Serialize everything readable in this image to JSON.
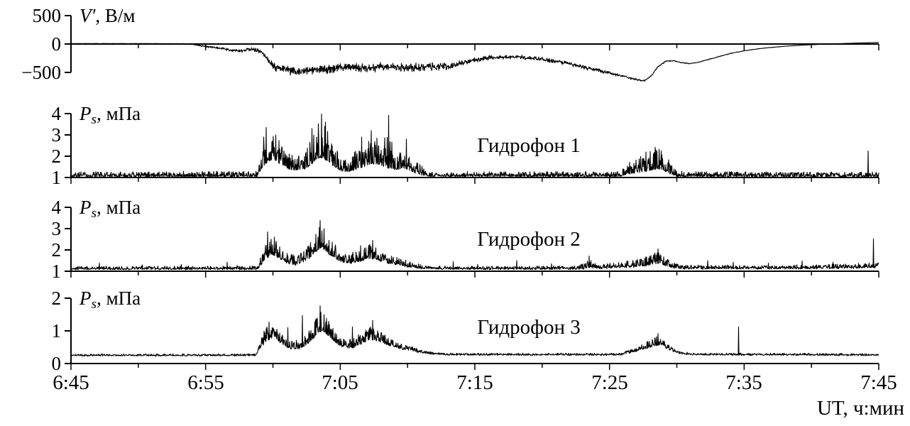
{
  "figure": {
    "background": "#ffffff",
    "stroke": "#000000",
    "xlabel": "UT, ч:мин",
    "x_minor_step_min": 5,
    "x_major": [
      {
        "t": 0,
        "label": "6:45"
      },
      {
        "t": 10,
        "label": "6:55"
      },
      {
        "t": 20,
        "label": "7:05"
      },
      {
        "t": 30,
        "label": "7:15"
      },
      {
        "t": 40,
        "label": "7:25"
      },
      {
        "t": 50,
        "label": "7:35"
      },
      {
        "t": 60,
        "label": "7:45"
      }
    ]
  },
  "chart_data": [
    {
      "id": "em-field",
      "type": "line",
      "label": "",
      "ylabel": "V′, В/м",
      "ylabel_parts": {
        "symbol": "V",
        "prime": "′",
        "sub": "",
        "unit": ", В/м"
      },
      "yticks": [
        500,
        0,
        -500
      ],
      "ytick_labels": [
        "500",
        "0",
        "−500"
      ],
      "ylim": [
        -750,
        550
      ],
      "xlim_minutes": [
        0,
        60
      ],
      "noise_model": "symmetric",
      "jitter": 0,
      "mean": [
        [
          0,
          8
        ],
        [
          6,
          8
        ],
        [
          8,
          4
        ],
        [
          9,
          -5
        ],
        [
          10,
          -45
        ],
        [
          11,
          -70
        ],
        [
          12,
          -110
        ],
        [
          12.7,
          -125
        ],
        [
          13.4,
          -85
        ],
        [
          14.1,
          -130
        ],
        [
          14.7,
          -280
        ],
        [
          15.2,
          -430
        ],
        [
          16,
          -455
        ],
        [
          17,
          -485
        ],
        [
          18,
          -440
        ],
        [
          19,
          -445
        ],
        [
          20,
          -425
        ],
        [
          21,
          -405
        ],
        [
          22,
          -435
        ],
        [
          23,
          -405
        ],
        [
          24,
          -395
        ],
        [
          25,
          -425
        ],
        [
          26,
          -405
        ],
        [
          27,
          -395
        ],
        [
          28,
          -405
        ],
        [
          29,
          -340
        ],
        [
          30,
          -285
        ],
        [
          31,
          -245
        ],
        [
          32,
          -230
        ],
        [
          33,
          -220
        ],
        [
          34,
          -240
        ],
        [
          35,
          -270
        ],
        [
          36,
          -305
        ],
        [
          37,
          -350
        ],
        [
          38,
          -400
        ],
        [
          39,
          -455
        ],
        [
          40,
          -510
        ],
        [
          41,
          -570
        ],
        [
          42,
          -625
        ],
        [
          42.6,
          -645
        ],
        [
          43.1,
          -560
        ],
        [
          43.6,
          -400
        ],
        [
          44.2,
          -300
        ],
        [
          44.8,
          -295
        ],
        [
          45.4,
          -330
        ],
        [
          46,
          -345
        ],
        [
          46.6,
          -320
        ],
        [
          47.4,
          -270
        ],
        [
          48.2,
          -215
        ],
        [
          49,
          -165
        ],
        [
          50,
          -120
        ],
        [
          51,
          -85
        ],
        [
          52,
          -60
        ],
        [
          53,
          -40
        ],
        [
          54,
          -25
        ],
        [
          55,
          -12
        ],
        [
          56,
          -2
        ],
        [
          57,
          6
        ],
        [
          58,
          14
        ],
        [
          59,
          22
        ],
        [
          60,
          28
        ]
      ],
      "amp": [
        [
          0,
          4
        ],
        [
          7,
          5
        ],
        [
          9,
          12
        ],
        [
          11,
          22
        ],
        [
          13,
          35
        ],
        [
          14,
          45
        ],
        [
          15,
          80
        ],
        [
          16,
          95
        ],
        [
          18,
          90
        ],
        [
          20,
          95
        ],
        [
          22,
          90
        ],
        [
          24,
          95
        ],
        [
          26,
          85
        ],
        [
          28,
          75
        ],
        [
          29,
          55
        ],
        [
          31,
          45
        ],
        [
          33,
          40
        ],
        [
          35,
          45
        ],
        [
          37,
          45
        ],
        [
          39,
          40
        ],
        [
          41,
          28
        ],
        [
          42.5,
          18
        ],
        [
          43.5,
          14
        ],
        [
          44.5,
          10
        ],
        [
          46,
          10
        ],
        [
          48,
          8
        ],
        [
          50,
          6
        ],
        [
          52,
          4
        ],
        [
          55,
          3
        ],
        [
          60,
          3
        ]
      ],
      "spikes": []
    },
    {
      "id": "hydrophone-1",
      "type": "line",
      "label": "Гидрофон 1",
      "ylabel": "Ps, мПа",
      "ylabel_parts": {
        "symbol": "P",
        "prime": "",
        "sub": "s",
        "unit": ", мПа"
      },
      "yticks": [
        4,
        3,
        2,
        1
      ],
      "ytick_labels": [
        "4",
        "3",
        "2",
        "1"
      ],
      "ylim": [
        1,
        4.3
      ],
      "xlim_minutes": [
        0,
        60
      ],
      "noise_model": "positive",
      "jitter": 0.03,
      "mean": [
        [
          0,
          1.04
        ],
        [
          13.8,
          1.04
        ],
        [
          14.2,
          1.45
        ],
        [
          14.6,
          1.75
        ],
        [
          15.1,
          1.85
        ],
        [
          15.6,
          1.6
        ],
        [
          16.2,
          1.4
        ],
        [
          16.8,
          1.3
        ],
        [
          17.4,
          1.4
        ],
        [
          18,
          1.7
        ],
        [
          18.5,
          1.95
        ],
        [
          19,
          1.8
        ],
        [
          19.6,
          1.45
        ],
        [
          20.3,
          1.25
        ],
        [
          21,
          1.3
        ],
        [
          21.7,
          1.5
        ],
        [
          22.3,
          1.65
        ],
        [
          22.9,
          1.6
        ],
        [
          23.5,
          1.45
        ],
        [
          24.1,
          1.35
        ],
        [
          24.8,
          1.45
        ],
        [
          25.4,
          1.25
        ],
        [
          26,
          1.12
        ],
        [
          26.6,
          1.05
        ],
        [
          40.8,
          1.05
        ],
        [
          41.3,
          1.15
        ],
        [
          42,
          1.22
        ],
        [
          42.8,
          1.3
        ],
        [
          43.5,
          1.4
        ],
        [
          44,
          1.35
        ],
        [
          44.5,
          1.15
        ],
        [
          45,
          1.05
        ],
        [
          60,
          1.04
        ]
      ],
      "amp": [
        [
          0,
          0.22
        ],
        [
          13.8,
          0.25
        ],
        [
          14.3,
          1.5
        ],
        [
          15,
          1.3
        ],
        [
          16,
          0.8
        ],
        [
          17,
          0.7
        ],
        [
          17.8,
          1.3
        ],
        [
          18.5,
          1.9
        ],
        [
          19.2,
          1.4
        ],
        [
          20,
          0.7
        ],
        [
          21,
          0.9
        ],
        [
          22,
          1.3
        ],
        [
          23,
          1.3
        ],
        [
          23.7,
          1.6
        ],
        [
          24.5,
          0.9
        ],
        [
          25.5,
          0.6
        ],
        [
          26.5,
          0.3
        ],
        [
          27.2,
          0.22
        ],
        [
          40.5,
          0.22
        ],
        [
          41.2,
          0.5
        ],
        [
          42,
          0.7
        ],
        [
          43,
          0.9
        ],
        [
          43.7,
          1.0
        ],
        [
          44.3,
          0.7
        ],
        [
          45,
          0.3
        ],
        [
          45.6,
          0.22
        ],
        [
          60,
          0.22
        ]
      ],
      "spikes": [
        [
          14.5,
          3.35
        ],
        [
          15.2,
          3.0
        ],
        [
          17.9,
          3.3
        ],
        [
          18.6,
          3.98
        ],
        [
          18.9,
          3.6
        ],
        [
          21.6,
          2.9
        ],
        [
          22.3,
          3.2
        ],
        [
          23.6,
          3.92
        ],
        [
          24.9,
          2.8
        ],
        [
          42.7,
          2.2
        ],
        [
          43.4,
          2.42
        ],
        [
          59.2,
          2.25
        ]
      ]
    },
    {
      "id": "hydrophone-2",
      "type": "line",
      "label": "Гидрофон 2",
      "ylabel": "Ps, мПа",
      "ylabel_parts": {
        "symbol": "P",
        "prime": "",
        "sub": "s",
        "unit": ", мПа"
      },
      "yticks": [
        4,
        3,
        2,
        1
      ],
      "ytick_labels": [
        "4",
        "3",
        "2",
        "1"
      ],
      "ylim": [
        1,
        4.3
      ],
      "xlim_minutes": [
        0,
        60
      ],
      "noise_model": "positive",
      "jitter": 0.06,
      "mean": [
        [
          0,
          1.09
        ],
        [
          13.9,
          1.09
        ],
        [
          14.4,
          1.55
        ],
        [
          14.9,
          1.8
        ],
        [
          15.4,
          1.65
        ],
        [
          16,
          1.4
        ],
        [
          16.7,
          1.3
        ],
        [
          17.4,
          1.45
        ],
        [
          18.1,
          1.85
        ],
        [
          18.6,
          2.15
        ],
        [
          19.1,
          1.85
        ],
        [
          19.8,
          1.5
        ],
        [
          20.6,
          1.35
        ],
        [
          21.4,
          1.45
        ],
        [
          22.1,
          1.6
        ],
        [
          22.7,
          1.55
        ],
        [
          23.4,
          1.4
        ],
        [
          24.2,
          1.3
        ],
        [
          25,
          1.2
        ],
        [
          26,
          1.13
        ],
        [
          27,
          1.1
        ],
        [
          38,
          1.1
        ],
        [
          38.6,
          1.18
        ],
        [
          39.2,
          1.12
        ],
        [
          40,
          1.14
        ],
        [
          41,
          1.18
        ],
        [
          42,
          1.2
        ],
        [
          42.8,
          1.26
        ],
        [
          43.5,
          1.38
        ],
        [
          44.1,
          1.28
        ],
        [
          44.8,
          1.15
        ],
        [
          45.6,
          1.12
        ],
        [
          50,
          1.12
        ],
        [
          55,
          1.13
        ],
        [
          58,
          1.15
        ],
        [
          60,
          1.18
        ]
      ],
      "amp": [
        [
          0,
          0.12
        ],
        [
          13.9,
          0.15
        ],
        [
          14.5,
          0.9
        ],
        [
          15.1,
          0.75
        ],
        [
          16,
          0.45
        ],
        [
          17,
          0.5
        ],
        [
          17.9,
          0.85
        ],
        [
          18.6,
          1.1
        ],
        [
          19.3,
          0.8
        ],
        [
          20.2,
          0.45
        ],
        [
          21.2,
          0.5
        ],
        [
          22.2,
          0.7
        ],
        [
          23,
          0.55
        ],
        [
          24,
          0.4
        ],
        [
          25,
          0.3
        ],
        [
          26,
          0.2
        ],
        [
          27,
          0.13
        ],
        [
          37.5,
          0.13
        ],
        [
          38.4,
          0.35
        ],
        [
          39.4,
          0.18
        ],
        [
          40.5,
          0.25
        ],
        [
          41.5,
          0.3
        ],
        [
          42.5,
          0.4
        ],
        [
          43.4,
          0.55
        ],
        [
          44.2,
          0.35
        ],
        [
          45.2,
          0.18
        ],
        [
          50,
          0.15
        ],
        [
          55,
          0.16
        ],
        [
          58,
          0.2
        ],
        [
          60,
          0.25
        ]
      ],
      "spikes": [
        [
          2.1,
          1.38
        ],
        [
          5.3,
          1.3
        ],
        [
          8.2,
          1.32
        ],
        [
          11.6,
          1.42
        ],
        [
          14.6,
          2.85
        ],
        [
          15.1,
          2.6
        ],
        [
          17.8,
          2.35
        ],
        [
          18.5,
          3.38
        ],
        [
          18.8,
          3.0
        ],
        [
          21.5,
          2.2
        ],
        [
          22.4,
          2.45
        ],
        [
          28.4,
          1.45
        ],
        [
          30.2,
          1.32
        ],
        [
          33.1,
          1.5
        ],
        [
          35.7,
          1.35
        ],
        [
          38.5,
          1.72
        ],
        [
          43.6,
          2.05
        ],
        [
          47.3,
          1.5
        ],
        [
          49.2,
          1.42
        ],
        [
          51.8,
          1.38
        ],
        [
          54.3,
          1.48
        ],
        [
          56.6,
          1.42
        ],
        [
          59.6,
          2.52
        ]
      ]
    },
    {
      "id": "hydrophone-3",
      "type": "line",
      "label": "Гидрофон 3",
      "ylabel": "Ps, мПа",
      "ylabel_parts": {
        "symbol": "P",
        "prime": "",
        "sub": "s",
        "unit": ", мПа"
      },
      "yticks": [
        2,
        1,
        0
      ],
      "ytick_labels": [
        "2",
        "1",
        "0"
      ],
      "ylim": [
        0,
        2.1
      ],
      "xlim_minutes": [
        0,
        60
      ],
      "noise_model": "positive",
      "jitter": 0.03,
      "mean": [
        [
          0,
          0.24
        ],
        [
          13.7,
          0.24
        ],
        [
          14.1,
          0.5
        ],
        [
          14.6,
          0.72
        ],
        [
          15.1,
          0.78
        ],
        [
          15.7,
          0.58
        ],
        [
          16.3,
          0.45
        ],
        [
          17,
          0.46
        ],
        [
          17.7,
          0.62
        ],
        [
          18.3,
          0.92
        ],
        [
          18.7,
          1.02
        ],
        [
          19.3,
          0.78
        ],
        [
          20,
          0.52
        ],
        [
          20.8,
          0.46
        ],
        [
          21.6,
          0.6
        ],
        [
          22.2,
          0.74
        ],
        [
          22.8,
          0.68
        ],
        [
          23.6,
          0.55
        ],
        [
          24.4,
          0.46
        ],
        [
          25.2,
          0.4
        ],
        [
          26,
          0.33
        ],
        [
          27,
          0.28
        ],
        [
          28,
          0.26
        ],
        [
          40.8,
          0.26
        ],
        [
          41.6,
          0.34
        ],
        [
          42.4,
          0.42
        ],
        [
          43.2,
          0.52
        ],
        [
          43.8,
          0.58
        ],
        [
          44.4,
          0.42
        ],
        [
          45.2,
          0.3
        ],
        [
          46,
          0.27
        ],
        [
          49,
          0.26
        ],
        [
          60,
          0.25
        ]
      ],
      "amp": [
        [
          0,
          0.04
        ],
        [
          13.7,
          0.05
        ],
        [
          14.4,
          0.45
        ],
        [
          15.1,
          0.4
        ],
        [
          16,
          0.22
        ],
        [
          17,
          0.28
        ],
        [
          17.9,
          0.45
        ],
        [
          18.6,
          0.6
        ],
        [
          19.4,
          0.38
        ],
        [
          20.4,
          0.25
        ],
        [
          21.5,
          0.35
        ],
        [
          22.3,
          0.4
        ],
        [
          23.2,
          0.3
        ],
        [
          24.2,
          0.2
        ],
        [
          25.2,
          0.14
        ],
        [
          26.2,
          0.08
        ],
        [
          27.2,
          0.05
        ],
        [
          40.6,
          0.05
        ],
        [
          41.6,
          0.12
        ],
        [
          42.6,
          0.18
        ],
        [
          43.5,
          0.28
        ],
        [
          44.3,
          0.14
        ],
        [
          45.2,
          0.07
        ],
        [
          46,
          0.05
        ],
        [
          60,
          0.05
        ]
      ],
      "spikes": [
        [
          14.7,
          1.27
        ],
        [
          16.1,
          1.1
        ],
        [
          17.2,
          1.47
        ],
        [
          18.5,
          1.77
        ],
        [
          18.8,
          1.5
        ],
        [
          20.9,
          1.12
        ],
        [
          22.4,
          1.32
        ],
        [
          43.6,
          0.92
        ],
        [
          49.6,
          1.12
        ]
      ]
    }
  ]
}
